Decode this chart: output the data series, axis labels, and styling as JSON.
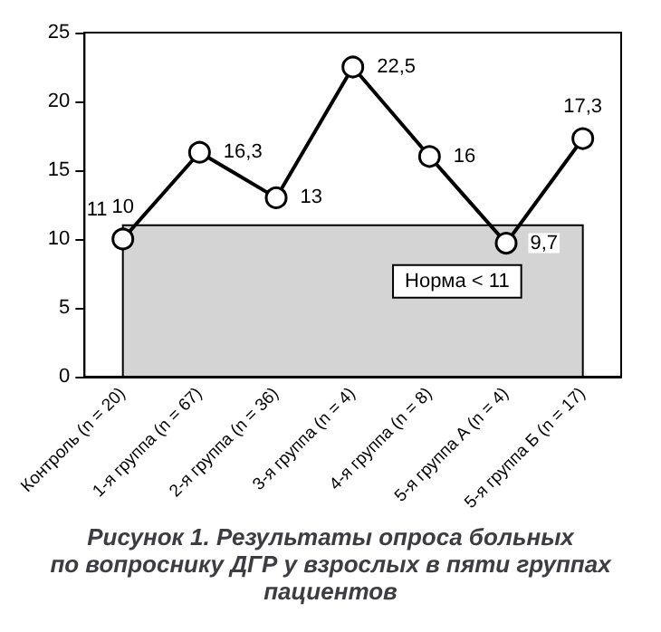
{
  "chart_data": {
    "type": "line",
    "title": "Рисунок 1. Результаты опроса больных\nпо вопроснику ДГР у взрослых в пяти группах\nпациентов",
    "categories": [
      "Контроль (n = 20)",
      "1-я группа (n = 67)",
      "2-я группа (n = 36)",
      "3-я группа (n = 4)",
      "4-я группа (n = 8)",
      "5-я группа А (n = 4)",
      "5-я группа Б (n = 17)"
    ],
    "series": [
      {
        "color": "#000000",
        "values": [
          10,
          16.3,
          13,
          22.5,
          16,
          9.7,
          17.3
        ],
        "value_labels": [
          "10",
          "16,3",
          "13",
          "22,5",
          "16",
          "9,7",
          "17,3"
        ]
      }
    ],
    "ylim": [
      0,
      25
    ],
    "yticks": [
      0,
      5,
      10,
      15,
      20,
      25
    ],
    "bands": [
      {
        "axis": "y",
        "from": 0,
        "to": 11,
        "label": "Норма < 11",
        "color": "#d4d4d4"
      }
    ],
    "annotations": [
      {
        "text": "11",
        "x": "Контроль (n = 20)",
        "y": 11
      }
    ],
    "marker": "circle",
    "line_style": "solid",
    "grid": false
  }
}
